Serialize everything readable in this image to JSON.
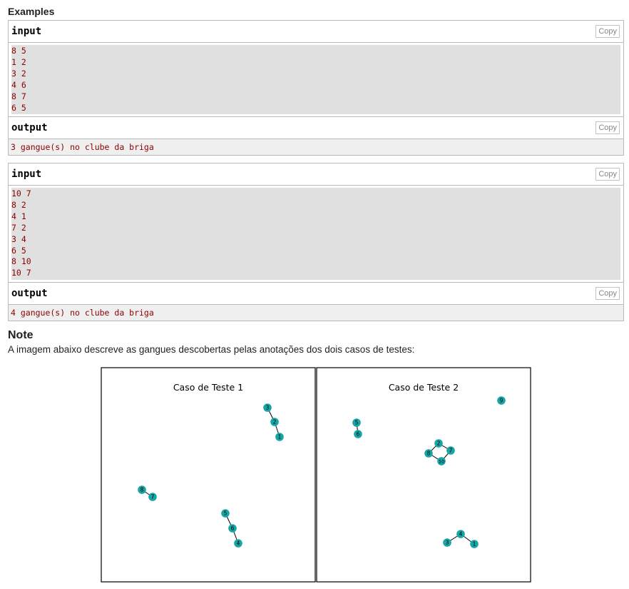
{
  "examples_title": "Examples",
  "copy_label": "Copy",
  "examples": [
    {
      "input_label": "input",
      "input_lines": [
        "8 5",
        "1 2",
        "3 2",
        "4 6",
        "8 7",
        "6 5"
      ],
      "output_label": "output",
      "output_text": "3 gangue(s) no clube da briga"
    },
    {
      "input_label": "input",
      "input_lines": [
        "10 7",
        "8 2",
        "4 1",
        "7 2",
        "3 4",
        "6 5",
        "8 10",
        "10 7"
      ],
      "output_label": "output",
      "output_text": "4 gangue(s) no clube da briga"
    }
  ],
  "note": {
    "title": "Note",
    "text": "A imagem abaixo descreve as gangues descobertas pelas anotações dos dois casos de testes:"
  },
  "figure": {
    "node_color": "#17a5a5",
    "panels": [
      {
        "title": "Caso de Teste 1",
        "nodes": [
          "3",
          "2",
          "1",
          "8",
          "7",
          "5",
          "6",
          "4"
        ],
        "edges": [
          [
            "3",
            "2"
          ],
          [
            "2",
            "1"
          ],
          [
            "8",
            "7"
          ],
          [
            "5",
            "6"
          ],
          [
            "6",
            "4"
          ]
        ]
      },
      {
        "title": "Caso de Teste 2",
        "nodes": [
          "9",
          "5",
          "6",
          "2",
          "7",
          "8",
          "10",
          "4",
          "3",
          "1"
        ],
        "edges": [
          [
            "5",
            "6"
          ],
          [
            "2",
            "7"
          ],
          [
            "2",
            "8"
          ],
          [
            "8",
            "10"
          ],
          [
            "10",
            "7"
          ],
          [
            "4",
            "3"
          ],
          [
            "4",
            "1"
          ]
        ]
      }
    ]
  }
}
